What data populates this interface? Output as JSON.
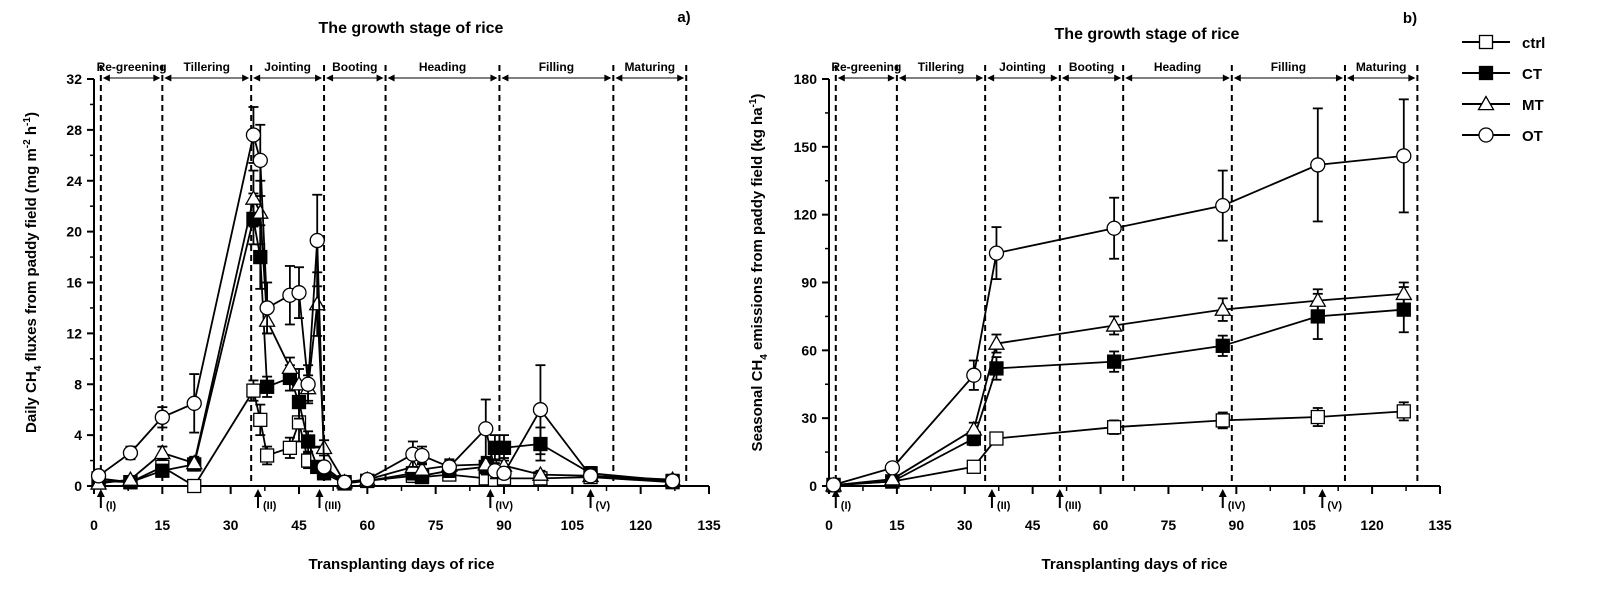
{
  "chart_data": [
    {
      "type": "line",
      "panel_label": "a)",
      "title": "The growth stage of rice",
      "xlabel": "Transplanting days of rice",
      "ylabel_main": "Daily CH",
      "ylabel_sub": "4",
      "ylabel_rest": " fluxes from paddy field (mg m",
      "ylabel_exp1": "-2",
      "ylabel_mid": " h",
      "ylabel_exp2": "-1",
      "ylabel_end": ")",
      "xlim": [
        0,
        135
      ],
      "ylim": [
        0,
        32
      ],
      "xticks": [
        0,
        15,
        30,
        45,
        60,
        75,
        90,
        105,
        120,
        135
      ],
      "yticks": [
        0,
        4,
        8,
        12,
        16,
        20,
        24,
        28,
        32
      ],
      "stage_boundaries": [
        1.5,
        15,
        34.5,
        50.5,
        64,
        89,
        114,
        130
      ],
      "stages": [
        "Re-greening",
        "Tillering",
        "Jointing",
        "Booting",
        "Heading",
        "Filling",
        "Maturing"
      ],
      "events": [
        {
          "label": "(I)",
          "x": 1.5
        },
        {
          "label": "(II)",
          "x": 36
        },
        {
          "label": "(III)",
          "x": 49.5
        },
        {
          "label": "(IV)",
          "x": 87
        },
        {
          "label": "(V)",
          "x": 109
        }
      ],
      "series": [
        {
          "name": "ctrl",
          "marker": "square-open",
          "points": [
            [
              1,
              0.4,
              0.3
            ],
            [
              8,
              0.3,
              0.2
            ],
            [
              15,
              1.5,
              0.4
            ],
            [
              22,
              0,
              0.3
            ],
            [
              35,
              7.5,
              0.8
            ],
            [
              36.5,
              5.2,
              1.2
            ],
            [
              38,
              2.4,
              0.7
            ],
            [
              43,
              3,
              0.8
            ],
            [
              45,
              5,
              1.5
            ],
            [
              47,
              2,
              0.6
            ],
            [
              49,
              2.5,
              0.6
            ],
            [
              50.5,
              1.2,
              0.3
            ],
            [
              55,
              0.3,
              0.1
            ],
            [
              60,
              0.4,
              0.2
            ],
            [
              70,
              0.8,
              0.5
            ],
            [
              72,
              0.7,
              0.4
            ],
            [
              78,
              0.9,
              0.3
            ],
            [
              86,
              0.6,
              0.3
            ],
            [
              88,
              0.5,
              0.3
            ],
            [
              90,
              0.6,
              0.3
            ],
            [
              98,
              0.6,
              0.3
            ],
            [
              109,
              0.7,
              0.3
            ],
            [
              127,
              0.3,
              0.2
            ]
          ]
        },
        {
          "name": "CT",
          "marker": "square-filled",
          "points": [
            [
              1,
              0.6,
              0.5
            ],
            [
              8,
              0.3,
              0.2
            ],
            [
              15,
              1.2,
              0.4
            ],
            [
              22,
              1.7,
              0.5
            ],
            [
              35,
              21,
              2
            ],
            [
              36.5,
              18,
              2.5
            ],
            [
              38,
              7.8,
              0.8
            ],
            [
              43,
              8.5,
              1
            ],
            [
              45,
              6.6,
              1.3
            ],
            [
              47,
              3.5,
              0.8
            ],
            [
              49,
              1.5,
              0.4
            ],
            [
              50.5,
              1,
              0.3
            ],
            [
              55,
              0.2,
              0.1
            ],
            [
              60,
              0.4,
              0.2
            ],
            [
              70,
              1,
              0.5
            ],
            [
              72,
              0.8,
              0.4
            ],
            [
              78,
              1.2,
              0.5
            ],
            [
              86,
              1.5,
              0.6
            ],
            [
              88,
              3,
              1
            ],
            [
              90,
              3,
              1
            ],
            [
              98,
              3.3,
              1.3
            ],
            [
              109,
              1,
              0.5
            ],
            [
              127,
              0.4,
              0.2
            ]
          ]
        },
        {
          "name": "MT",
          "marker": "triangle-open",
          "points": [
            [
              1,
              0.2,
              0.2
            ],
            [
              8,
              0.5,
              0.2
            ],
            [
              15,
              2.6,
              0.5
            ],
            [
              22,
              1.8,
              0.5
            ],
            [
              35,
              22.6,
              2.2
            ],
            [
              36.5,
              21.5,
              2.5
            ],
            [
              38,
              13,
              1
            ],
            [
              43,
              9.3,
              0.8
            ],
            [
              45,
              8,
              1.2
            ],
            [
              47,
              7.7,
              1
            ],
            [
              49,
              14.3,
              2.5
            ],
            [
              50.5,
              3,
              0.6
            ],
            [
              55,
              0.3,
              0.1
            ],
            [
              60,
              0.5,
              0.2
            ],
            [
              70,
              1.5,
              0.6
            ],
            [
              72,
              1.3,
              0.5
            ],
            [
              78,
              1.6,
              0.5
            ],
            [
              86,
              1.7,
              0.6
            ],
            [
              88,
              1.5,
              0.6
            ],
            [
              90,
              1.6,
              0.6
            ],
            [
              98,
              0.9,
              0.3
            ],
            [
              109,
              0.8,
              0.3
            ],
            [
              127,
              0.5,
              0.2
            ]
          ]
        },
        {
          "name": "OT",
          "marker": "circle-open",
          "points": [
            [
              1,
              0.8,
              0.4
            ],
            [
              8,
              2.6,
              0.5
            ],
            [
              15,
              5.4,
              0.8
            ],
            [
              22,
              6.5,
              2.3
            ],
            [
              35,
              27.6,
              2.2
            ],
            [
              36.5,
              25.6,
              2.8
            ],
            [
              38,
              14,
              2
            ],
            [
              43,
              15,
              2.3
            ],
            [
              45,
              15.2,
              2
            ],
            [
              47,
              8,
              1.5
            ],
            [
              49,
              19.3,
              3.6
            ],
            [
              50.5,
              1.5,
              0.4
            ],
            [
              55,
              0.3,
              0.1
            ],
            [
              60,
              0.5,
              0.2
            ],
            [
              70,
              2.5,
              1
            ],
            [
              72,
              2.4,
              0.7
            ],
            [
              78,
              1.5,
              0.5
            ],
            [
              86,
              4.5,
              2.3
            ],
            [
              88,
              1.2,
              0.6
            ],
            [
              90,
              1,
              0.4
            ],
            [
              98,
              6,
              3.5
            ],
            [
              109,
              0.8,
              0.3
            ],
            [
              127,
              0.4,
              0.2
            ]
          ]
        }
      ]
    },
    {
      "type": "line",
      "panel_label": "b)",
      "title": "The growth stage of rice",
      "xlabel": "Transplanting days of rice",
      "ylabel_main": "Seasonal CH",
      "ylabel_sub": "4",
      "ylabel_rest": " emissions from paddy field (kg ha",
      "ylabel_exp1": "-1",
      "ylabel_end": ")",
      "xlim": [
        0,
        135
      ],
      "ylim": [
        0,
        180
      ],
      "xticks": [
        0,
        15,
        30,
        45,
        60,
        75,
        90,
        105,
        120,
        135
      ],
      "yticks": [
        0,
        30,
        60,
        90,
        120,
        150,
        180
      ],
      "stage_boundaries": [
        1.5,
        15,
        34.5,
        51,
        65,
        89,
        114,
        130
      ],
      "stages": [
        "Re-greening",
        "Tillering",
        "Jointing",
        "Booting",
        "Heading",
        "Filling",
        "Maturing"
      ],
      "events": [
        {
          "label": "(I)",
          "x": 1.5
        },
        {
          "label": "(II)",
          "x": 36
        },
        {
          "label": "(III)",
          "x": 51
        },
        {
          "label": "(IV)",
          "x": 87
        },
        {
          "label": "(V)",
          "x": 109
        }
      ],
      "series": [
        {
          "name": "ctrl",
          "marker": "square-open",
          "points": [
            [
              1,
              0.3,
              0.2
            ],
            [
              14,
              2,
              1
            ],
            [
              32,
              8.5,
              1.5
            ],
            [
              37,
              21,
              2.5
            ],
            [
              63,
              26,
              3
            ],
            [
              87,
              29,
              3.5
            ],
            [
              108,
              30.5,
              4
            ],
            [
              127,
              33,
              4
            ]
          ]
        },
        {
          "name": "CT",
          "marker": "square-filled",
          "points": [
            [
              1,
              0.5,
              0.3
            ],
            [
              14,
              2,
              1
            ],
            [
              32,
              21,
              3
            ],
            [
              37,
              52,
              5
            ],
            [
              63,
              55,
              4.5
            ],
            [
              87,
              62,
              4.5
            ],
            [
              108,
              75,
              10
            ],
            [
              127,
              78,
              10
            ]
          ]
        },
        {
          "name": "MT",
          "marker": "triangle-open",
          "points": [
            [
              1,
              0.3,
              0.2
            ],
            [
              14,
              3,
              1
            ],
            [
              32,
              25,
              3
            ],
            [
              37,
              63,
              4
            ],
            [
              63,
              71,
              4
            ],
            [
              87,
              78,
              5
            ],
            [
              108,
              82,
              5
            ],
            [
              127,
              85,
              5
            ]
          ]
        },
        {
          "name": "OT",
          "marker": "circle-open",
          "points": [
            [
              1,
              0.5,
              0.3
            ],
            [
              14,
              8,
              1
            ],
            [
              32,
              49,
              6.5
            ],
            [
              37,
              103,
              11.5
            ],
            [
              63,
              114,
              13.5
            ],
            [
              87,
              124,
              15.5
            ],
            [
              108,
              142,
              25
            ],
            [
              127,
              146,
              25
            ]
          ]
        }
      ]
    }
  ],
  "legend": {
    "placement": "right",
    "items": [
      {
        "name": "ctrl",
        "marker": "square-open"
      },
      {
        "name": "CT",
        "marker": "square-filled"
      },
      {
        "name": "MT",
        "marker": "triangle-open"
      },
      {
        "name": "OT",
        "marker": "circle-open"
      }
    ]
  }
}
